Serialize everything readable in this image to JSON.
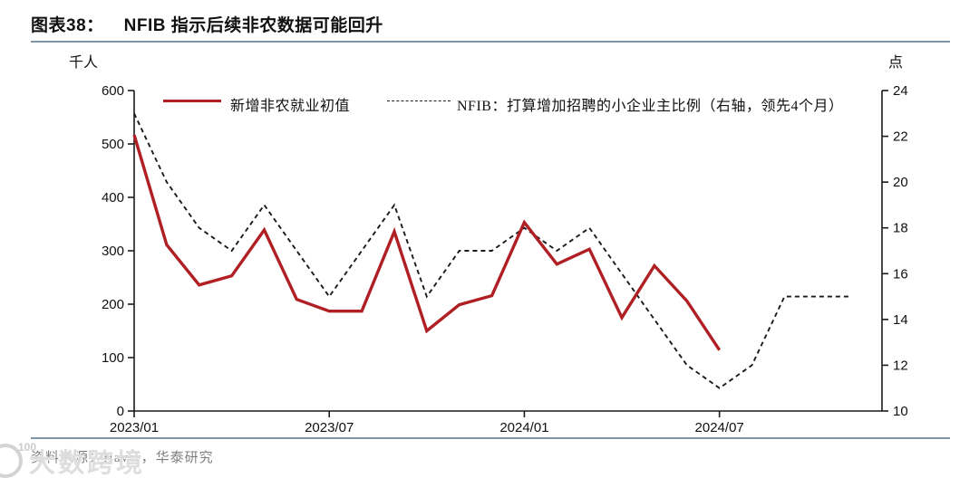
{
  "header": {
    "figure_label": "图表38：",
    "title": "NFIB 指示后续非农数据可能回升"
  },
  "chart_data": {
    "type": "line",
    "title": "NFIB 指示后续非农数据可能回升",
    "grid": false,
    "legend_position": "top",
    "x_months": [
      "2023/01",
      "2023/02",
      "2023/03",
      "2023/04",
      "2023/05",
      "2023/06",
      "2023/07",
      "2023/08",
      "2023/09",
      "2023/10",
      "2023/11",
      "2023/12",
      "2024/01",
      "2024/02",
      "2024/03",
      "2024/04",
      "2024/05",
      "2024/06",
      "2024/07",
      "2024/08",
      "2024/09",
      "2024/10",
      "2024/11"
    ],
    "x_tick_labels": [
      "2023/01",
      "2023/07",
      "2024/01",
      "2024/07"
    ],
    "left_axis": {
      "unit": "千人",
      "min": 0,
      "max": 600,
      "tick_step": 100,
      "tick_labels": [
        "0",
        "100",
        "200",
        "300",
        "400",
        "500",
        "600"
      ]
    },
    "right_axis": {
      "unit": "点",
      "min": 10,
      "max": 24,
      "tick_step": 2,
      "tick_labels": [
        "10",
        "12",
        "14",
        "16",
        "18",
        "20",
        "22",
        "24"
      ]
    },
    "series": [
      {
        "name": "新增非农就业初值",
        "axis": "left",
        "line_style": "solid",
        "color": "#b01f24",
        "values": [
          517,
          311,
          236,
          253,
          339,
          209,
          187,
          187,
          336,
          150,
          199,
          216,
          353,
          275,
          303,
          175,
          272,
          206,
          114
        ]
      },
      {
        "name": "NFIB：打算增加招聘的小企业主比例（右轴，领先4个月）",
        "axis": "right",
        "line_style": "dashed",
        "color": "#1a1a1a",
        "values": [
          23,
          20,
          18,
          17,
          19,
          17,
          15,
          17,
          19,
          15,
          17,
          17,
          18,
          17,
          18,
          16,
          14,
          12,
          11,
          12,
          15,
          15,
          15
        ]
      }
    ]
  },
  "footer": {
    "source": "资料来源：Haver，华泰研究",
    "watermark": "大数跨境",
    "watermark_sup": "100"
  }
}
